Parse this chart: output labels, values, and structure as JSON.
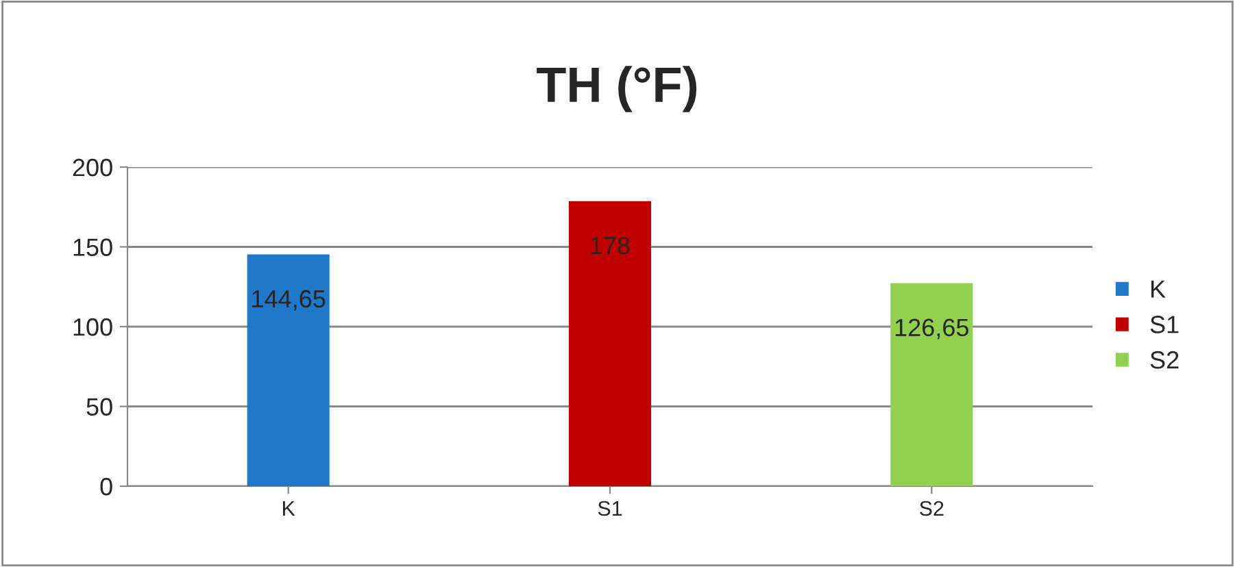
{
  "chart_data": {
    "type": "bar",
    "title": "TH (°F)",
    "categories": [
      "K",
      "S1",
      "S2"
    ],
    "series": [
      {
        "name": "K",
        "color": "#1f78c8",
        "values": [
          144.65,
          null,
          null
        ],
        "value_labels": [
          "144,65",
          null,
          null
        ]
      },
      {
        "name": "S1",
        "color": "#c00000",
        "values": [
          null,
          178,
          null
        ],
        "value_labels": [
          null,
          "178",
          null
        ]
      },
      {
        "name": "S2",
        "color": "#92d050",
        "values": [
          null,
          null,
          126.65
        ],
        "value_labels": [
          null,
          null,
          "126,65"
        ]
      }
    ],
    "ylim": [
      0,
      200
    ],
    "yticks": [
      0,
      50,
      100,
      150,
      200
    ],
    "grid": "y",
    "legend": "right"
  }
}
